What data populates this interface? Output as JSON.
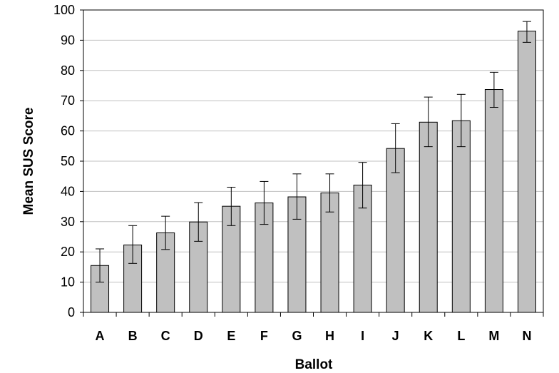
{
  "chart_data": {
    "type": "bar",
    "title": "",
    "xlabel": "Ballot",
    "ylabel": "Mean SUS Score",
    "ylim": [
      0,
      100
    ],
    "yticks": [
      "0",
      "10",
      "20",
      "30",
      "40",
      "50",
      "60",
      "70",
      "80",
      "90",
      "100"
    ],
    "grid": true,
    "categories": [
      "A",
      "B",
      "C",
      "D",
      "E",
      "F",
      "G",
      "H",
      "I",
      "J",
      "K",
      "L",
      "M",
      "N"
    ],
    "values": [
      15.5,
      22.3,
      26.3,
      29.9,
      35.1,
      36.2,
      38.2,
      39.5,
      42.1,
      54.2,
      62.9,
      63.4,
      73.7,
      93.0
    ],
    "error_low": [
      10.0,
      16.2,
      20.8,
      23.5,
      28.7,
      29.1,
      30.8,
      33.2,
      34.5,
      46.2,
      54.8,
      54.8,
      67.8,
      89.3
    ],
    "error_high": [
      21.0,
      28.7,
      31.8,
      36.3,
      41.4,
      43.3,
      45.8,
      45.8,
      49.6,
      62.4,
      71.2,
      72.1,
      79.4,
      96.2
    ],
    "colors": {
      "bar_fill": "#c0c0c0",
      "bar_stroke": "#000000",
      "grid": "#c0c0c0"
    }
  }
}
